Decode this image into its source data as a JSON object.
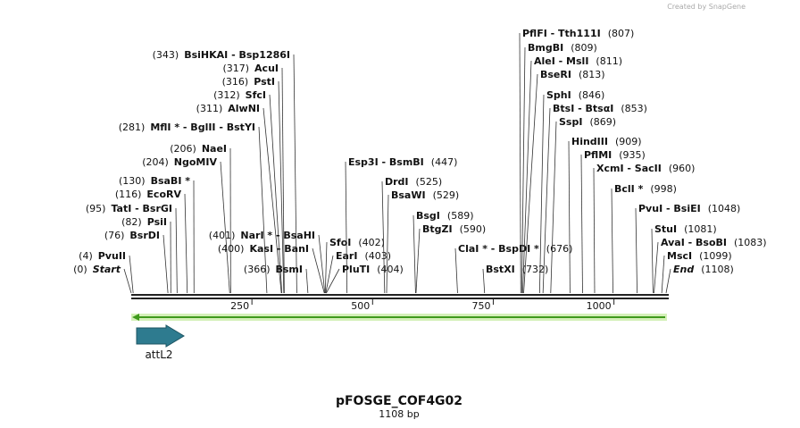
{
  "brand": "Created by SnapGene",
  "title": "pFOSGE_COF4G02",
  "length": "1108 bp",
  "map": {
    "ticks": [
      250,
      500,
      750,
      1000
    ]
  },
  "features": [
    {
      "name": "attL2"
    }
  ],
  "enzymes": [
    {
      "name": "Start",
      "site": "(0)"
    },
    {
      "name": "PvuII",
      "site": "(4)"
    },
    {
      "name": "BsrDI",
      "site": "(76)"
    },
    {
      "name": "PsiI",
      "site": "(82)"
    },
    {
      "name": "TatI  - BsrGI",
      "site": "(95)"
    },
    {
      "name": "EcoRV",
      "site": "(116)"
    },
    {
      "name": "BsaBI *",
      "site": "(130)"
    },
    {
      "name": "NgoMIV",
      "site": "(204)"
    },
    {
      "name": "NaeI",
      "site": "(206)"
    },
    {
      "name": "MflI *  - BglII  - BstYI",
      "site": "(281)"
    },
    {
      "name": "AlwNI",
      "site": "(311)"
    },
    {
      "name": "SfcI",
      "site": "(312)"
    },
    {
      "name": "PstI",
      "site": "(316)"
    },
    {
      "name": "AcuI",
      "site": "(317)"
    },
    {
      "name": "BsiHKAI  - Bsp1286I",
      "site": "(343)"
    },
    {
      "name": "BsmI",
      "site": "(366)"
    },
    {
      "name": "KasI  - BanI",
      "site": "(400)"
    },
    {
      "name": "NarI *  - BsaHI",
      "site": "(401)"
    },
    {
      "name": "SfoI",
      "site": "(402)"
    },
    {
      "name": "EarI",
      "site": "(403)"
    },
    {
      "name": "PluTI",
      "site": "(404)"
    },
    {
      "name": "Esp3I  - BsmBI",
      "site": "(447)"
    },
    {
      "name": "DrdI",
      "site": "(525)"
    },
    {
      "name": "BsaWI",
      "site": "(529)"
    },
    {
      "name": "BsgI",
      "site": "(589)"
    },
    {
      "name": "BtgZI",
      "site": "(590)"
    },
    {
      "name": "ClaI *  - BspDI *",
      "site": "(676)"
    },
    {
      "name": "BstXI",
      "site": "(732)"
    },
    {
      "name": "PflFI  - Tth111I",
      "site": "(807)"
    },
    {
      "name": "BmgBI",
      "site": "(809)"
    },
    {
      "name": "AleI  - MslI",
      "site": "(811)"
    },
    {
      "name": "BseRI",
      "site": "(813)"
    },
    {
      "name": "SphI",
      "site": "(846)"
    },
    {
      "name": "BtsI  - BtsαI",
      "site": "(853)"
    },
    {
      "name": "SspI",
      "site": "(869)"
    },
    {
      "name": "HindIII",
      "site": "(909)"
    },
    {
      "name": "PflMI",
      "site": "(935)"
    },
    {
      "name": "XcmI  - SacII",
      "site": "(960)"
    },
    {
      "name": "BclI *",
      "site": "(998)"
    },
    {
      "name": "PvuI  - BsiEI",
      "site": "(1048)"
    },
    {
      "name": "StuI",
      "site": "(1081)"
    },
    {
      "name": "AvaI  - BsoBI",
      "site": "(1083)"
    },
    {
      "name": "MscI",
      "site": "(1099)"
    },
    {
      "name": "End",
      "site": "(1108)"
    }
  ]
}
